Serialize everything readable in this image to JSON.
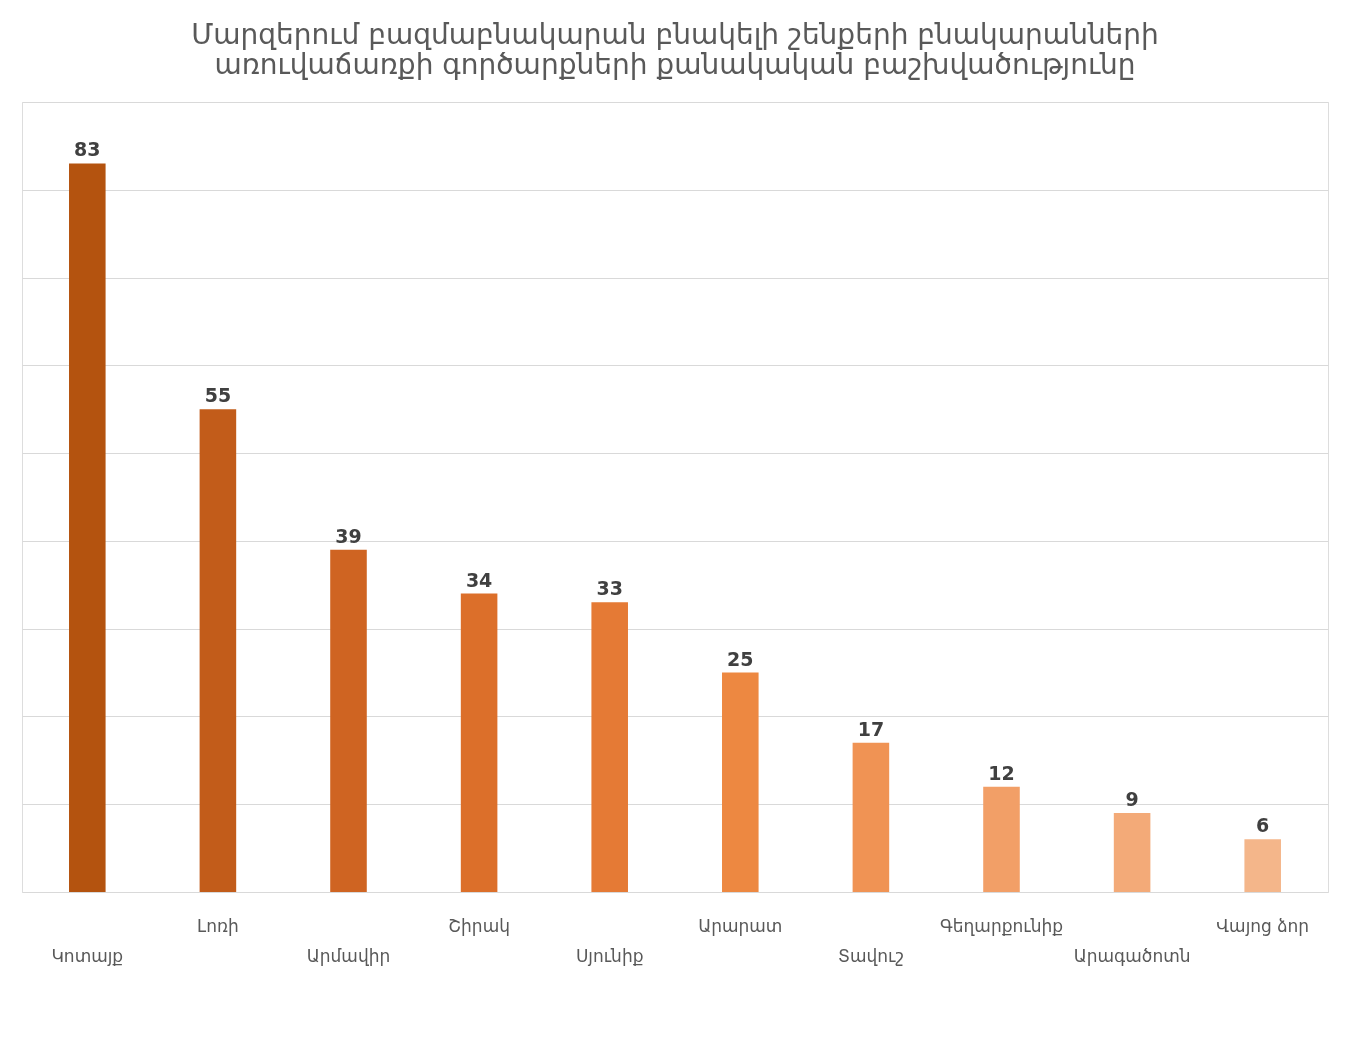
{
  "chart_data": {
    "type": "bar",
    "title": "Մարզերում բազմաբնակարան բնակելի շենքերի բնակարանների\nառուվաճառքի գործարքների քանակական բաշխվածությունը",
    "categories": [
      "Կոտայք",
      "Լոռի",
      "Արմավիր",
      "Շիրակ",
      "Սյունիք",
      "Արարատ",
      "Տավուշ",
      "Գեղարքունիք",
      "Արագածոտն",
      "Վայոց ձոր"
    ],
    "values": [
      83,
      55,
      39,
      34,
      33,
      25,
      17,
      12,
      9,
      6
    ],
    "colors": [
      "#b4530f",
      "#c25c1a",
      "#cf6422",
      "#dc6f2a",
      "#e57a35",
      "#ed8841",
      "#f09354",
      "#f29f67",
      "#f3aa78",
      "#f4b68a"
    ],
    "ylim": [
      0,
      90
    ],
    "yticks": [
      {
        "value": 0,
        "label": null
      },
      {
        "value": 10,
        "label": null
      },
      {
        "value": 20,
        "label": null
      },
      {
        "value": 30,
        "label": null
      },
      {
        "value": 40,
        "label": null
      },
      {
        "value": 50,
        "label": null
      },
      {
        "value": 60,
        "label": null
      },
      {
        "value": 70,
        "label": null
      },
      {
        "value": 80,
        "label": null
      },
      {
        "value": 90,
        "label": null
      }
    ],
    "grid": "y",
    "data_labels": true
  }
}
